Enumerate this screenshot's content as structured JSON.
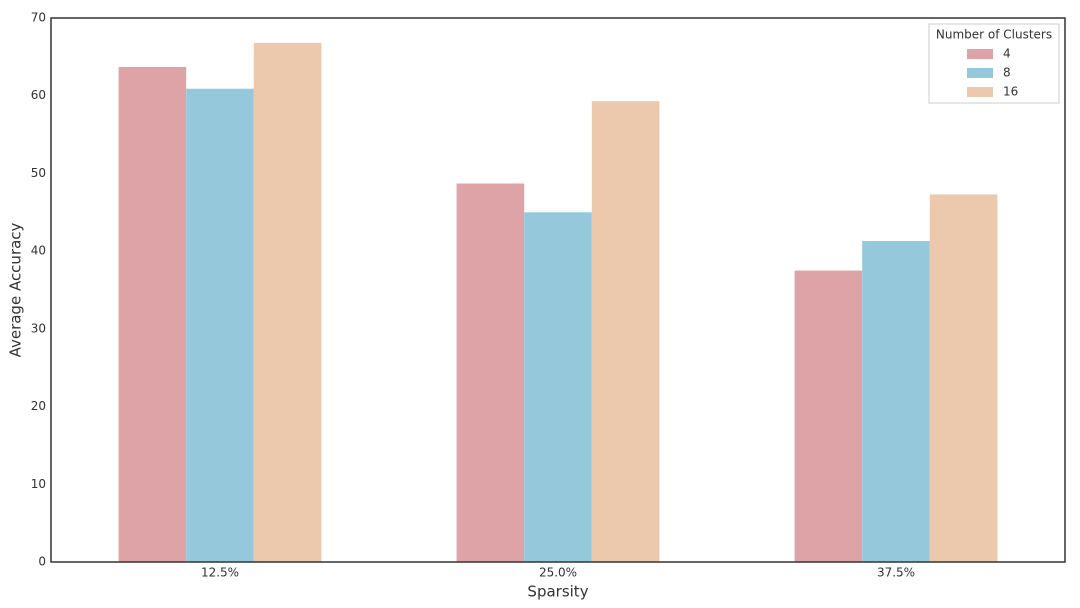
{
  "chart_data": {
    "type": "bar",
    "x_label": "Sparsity",
    "y_label": "Average Accuracy",
    "categories": [
      "12.5%",
      "25.0%",
      "37.5%"
    ],
    "series": [
      {
        "name": "4",
        "color": "#dea3a6",
        "values": [
          63.7,
          48.7,
          37.5
        ]
      },
      {
        "name": "8",
        "color": "#96c8db",
        "values": [
          60.9,
          45.0,
          41.3
        ]
      },
      {
        "name": "16",
        "color": "#ecc8ad",
        "values": [
          66.8,
          59.3,
          47.3
        ]
      }
    ],
    "legend_title": "Number of Clusters",
    "legend_position": "upper right",
    "ylim": [
      0,
      70
    ],
    "yticks": [
      0,
      10,
      20,
      30,
      40,
      50,
      60,
      70
    ],
    "grid": false
  }
}
